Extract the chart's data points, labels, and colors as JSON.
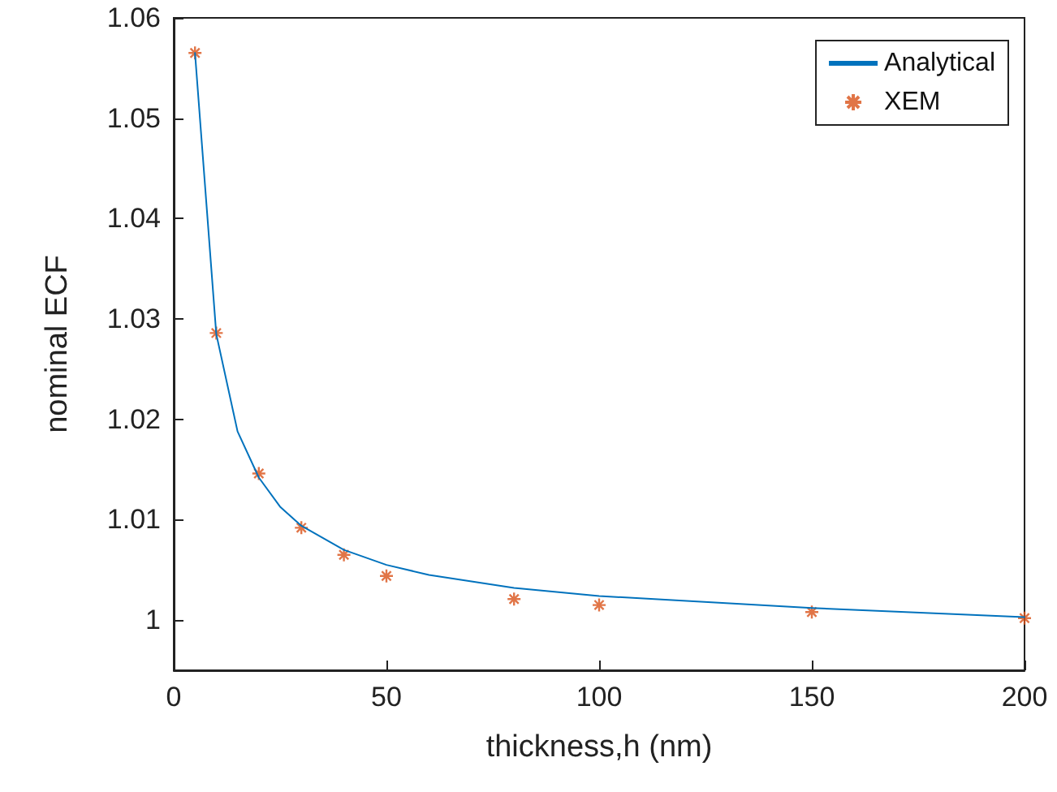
{
  "chart_data": {
    "type": "line",
    "xlabel": "thickness,h (nm)",
    "ylabel": "nominal ECF",
    "xlim": [
      0,
      200
    ],
    "xticks": [
      0,
      50,
      100,
      150,
      200
    ],
    "ylim": [
      0.995,
      1.06
    ],
    "yticks": [
      1,
      1.01,
      1.02,
      1.03,
      1.04,
      1.05,
      1.06
    ],
    "grid": false,
    "legend": "top right",
    "series": [
      {
        "name": "Analytical",
        "color": "#0072bd",
        "marker": "none",
        "line_style": "solid",
        "x": [
          5,
          10,
          15,
          20,
          25,
          30,
          40,
          50,
          60,
          80,
          100,
          150,
          200
        ],
        "values": [
          1.0565,
          1.0285,
          1.0188,
          1.0142,
          1.0113,
          1.0094,
          1.007,
          1.0055,
          1.0045,
          1.0032,
          1.0024,
          1.0012,
          1.0003
        ]
      },
      {
        "name": "XEM",
        "type": "scatter",
        "color": "#d95319",
        "marker": "cross",
        "x": [
          5,
          10,
          20,
          30,
          40,
          50,
          80,
          100,
          150,
          200
        ],
        "values": [
          1.0565,
          1.0286,
          1.0146,
          1.0092,
          1.0065,
          1.0044,
          1.0021,
          1.0015,
          1.0008,
          1.0002
        ]
      }
    ]
  }
}
